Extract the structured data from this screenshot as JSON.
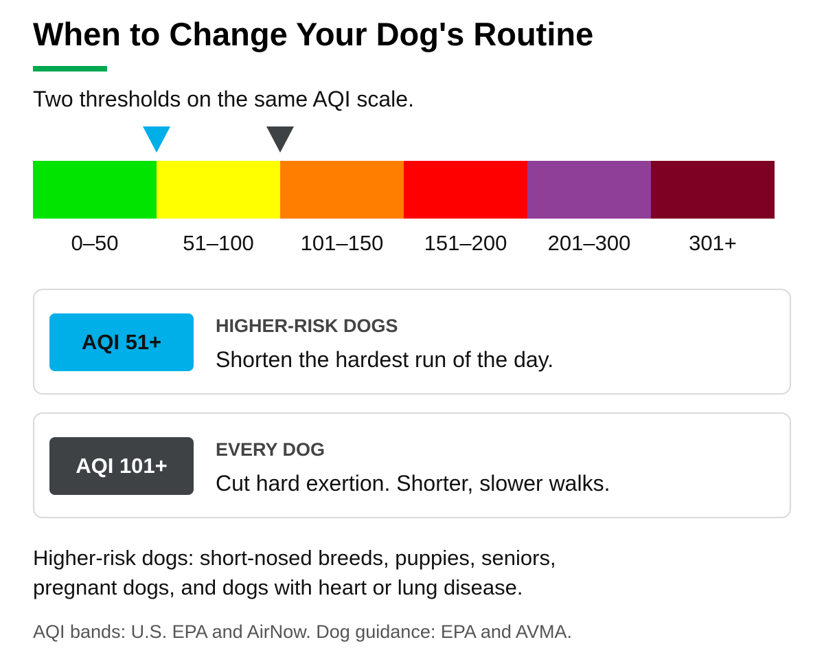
{
  "title": "When to Change Your Dog's Routine",
  "subtitle": "Two thresholds on the same AQI scale.",
  "colors": {
    "title_rule": "#00a84f",
    "threshold_higher_risk": "#00aee8",
    "threshold_every_dog": "#3e4244",
    "badge_text_higher_risk": "#111111",
    "badge_text_every_dog": "#ffffff"
  },
  "scale": {
    "segments": [
      {
        "label": "0–50",
        "color": "#00e400"
      },
      {
        "label": "51–100",
        "color": "#ffff00"
      },
      {
        "label": "101–150",
        "color": "#ff7e00"
      },
      {
        "label": "151–200",
        "color": "#ff0000"
      },
      {
        "label": "201–300",
        "color": "#8f3f97"
      },
      {
        "label": "301+",
        "color": "#7e0023"
      }
    ],
    "markers": [
      {
        "name": "higher-risk-threshold-marker",
        "threshold": 51,
        "color": "#00aee8"
      },
      {
        "name": "every-dog-threshold-marker",
        "threshold": 101,
        "color": "#3e4244"
      }
    ]
  },
  "cards": [
    {
      "badge": "AQI 51+",
      "heading": "HIGHER-RISK DOGS",
      "text": "Shorten the hardest run of the day."
    },
    {
      "badge": "AQI 101+",
      "heading": "EVERY DOG",
      "text": "Cut hard exertion. Shorter, slower walks."
    }
  ],
  "note": {
    "line1": "Higher-risk dogs: short-nosed breeds, puppies, seniors,",
    "line2": "pregnant dogs, and dogs with heart or lung disease."
  },
  "source": "AQI bands: U.S. EPA and AirNow. Dog guidance: EPA and AVMA."
}
